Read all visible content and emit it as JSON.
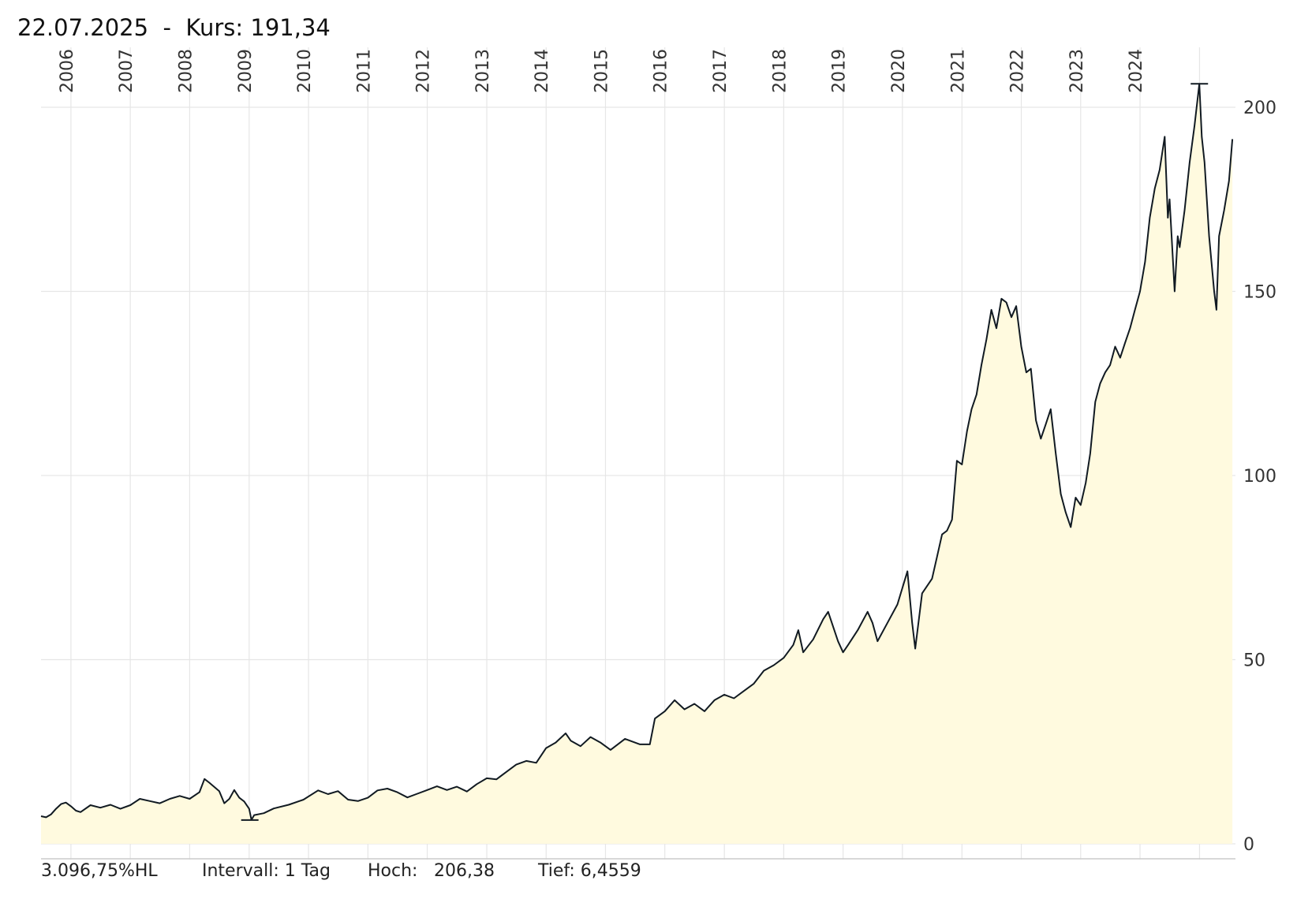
{
  "header": {
    "date": "22.07.2025",
    "separator": "-",
    "kurs_label": "Kurs:",
    "kurs_value": "191,34"
  },
  "footer": {
    "performance": "3.096,75%HL",
    "interval": "Intervall: 1 Tag",
    "high_label": "Hoch:",
    "high_value": "206,38",
    "low": "Tief: 6,4559"
  },
  "colors": {
    "line": "#111a22",
    "area": "#fffadf",
    "grid": "#e6e6e6",
    "axis": "#cccccc"
  },
  "chart_data": {
    "type": "area",
    "x_axis": "date (year)",
    "x_ticks": [
      "2006",
      "2007",
      "2008",
      "2009",
      "2010",
      "2011",
      "2012",
      "2013",
      "2014",
      "2015",
      "2016",
      "2017",
      "2018",
      "2019",
      "2020",
      "2021",
      "2022",
      "2023",
      "2024"
    ],
    "y_ticks": [
      "0",
      "50",
      "100",
      "150",
      "200"
    ],
    "ylim": [
      0,
      200
    ],
    "grid": true,
    "high_marker": {
      "date": "2024-12-31",
      "value": 206.38
    },
    "low_marker": {
      "date": "2009-01-05",
      "value": 6.4559
    },
    "series": [
      {
        "points": [
          [
            "2005-07-01",
            7.5
          ],
          [
            "2005-08-01",
            7.2
          ],
          [
            "2005-09-01",
            8.0
          ],
          [
            "2005-10-01",
            9.5
          ],
          [
            "2005-11-01",
            10.8
          ],
          [
            "2005-12-01",
            11.2
          ],
          [
            "2006-01-01",
            10.2
          ],
          [
            "2006-02-01",
            9.0
          ],
          [
            "2006-03-01",
            8.6
          ],
          [
            "2006-05-01",
            10.5
          ],
          [
            "2006-07-01",
            9.8
          ],
          [
            "2006-09-01",
            10.6
          ],
          [
            "2006-11-01",
            9.5
          ],
          [
            "2007-01-01",
            10.5
          ],
          [
            "2007-03-01",
            12.2
          ],
          [
            "2007-05-01",
            11.6
          ],
          [
            "2007-07-01",
            11.0
          ],
          [
            "2007-09-01",
            12.2
          ],
          [
            "2007-11-01",
            13.0
          ],
          [
            "2008-01-01",
            12.2
          ],
          [
            "2008-03-01",
            14.0
          ],
          [
            "2008-04-01",
            17.6
          ],
          [
            "2008-05-01",
            16.6
          ],
          [
            "2008-07-01",
            14.3
          ],
          [
            "2008-08-01",
            11.0
          ],
          [
            "2008-09-01",
            12.2
          ],
          [
            "2008-10-01",
            14.6
          ],
          [
            "2008-11-01",
            12.5
          ],
          [
            "2008-12-01",
            11.5
          ],
          [
            "2009-01-01",
            9.5
          ],
          [
            "2009-01-15",
            6.5
          ],
          [
            "2009-02-01",
            7.8
          ],
          [
            "2009-04-01",
            8.3
          ],
          [
            "2009-06-01",
            9.6
          ],
          [
            "2009-09-01",
            10.6
          ],
          [
            "2009-12-01",
            12.0
          ],
          [
            "2010-03-01",
            14.5
          ],
          [
            "2010-05-01",
            13.5
          ],
          [
            "2010-07-01",
            14.3
          ],
          [
            "2010-09-01",
            12.0
          ],
          [
            "2010-11-01",
            11.6
          ],
          [
            "2011-01-01",
            12.5
          ],
          [
            "2011-03-01",
            14.5
          ],
          [
            "2011-05-01",
            15.0
          ],
          [
            "2011-07-01",
            14.0
          ],
          [
            "2011-09-01",
            12.6
          ],
          [
            "2011-11-01",
            13.6
          ],
          [
            "2012-01-01",
            14.6
          ],
          [
            "2012-03-01",
            15.6
          ],
          [
            "2012-05-01",
            14.6
          ],
          [
            "2012-07-01",
            15.5
          ],
          [
            "2012-09-01",
            14.2
          ],
          [
            "2012-11-01",
            16.2
          ],
          [
            "2013-01-01",
            17.8
          ],
          [
            "2013-03-01",
            17.5
          ],
          [
            "2013-05-01",
            19.5
          ],
          [
            "2013-07-01",
            21.5
          ],
          [
            "2013-09-01",
            22.5
          ],
          [
            "2013-11-01",
            22.0
          ],
          [
            "2014-01-01",
            26.0
          ],
          [
            "2014-03-01",
            27.5
          ],
          [
            "2014-05-01",
            30.0
          ],
          [
            "2014-06-01",
            28.0
          ],
          [
            "2014-08-01",
            26.5
          ],
          [
            "2014-10-01",
            29.0
          ],
          [
            "2014-12-01",
            27.5
          ],
          [
            "2015-02-01",
            25.5
          ],
          [
            "2015-05-01",
            28.5
          ],
          [
            "2015-08-01",
            27.0
          ],
          [
            "2015-10-01",
            27.0
          ],
          [
            "2015-11-01",
            34.0
          ],
          [
            "2016-01-01",
            36.0
          ],
          [
            "2016-03-01",
            39.0
          ],
          [
            "2016-05-01",
            36.5
          ],
          [
            "2016-07-01",
            38.0
          ],
          [
            "2016-09-01",
            36.0
          ],
          [
            "2016-11-01",
            39.0
          ],
          [
            "2017-01-01",
            40.5
          ],
          [
            "2017-03-01",
            39.5
          ],
          [
            "2017-05-01",
            41.5
          ],
          [
            "2017-07-01",
            43.5
          ],
          [
            "2017-09-01",
            47.0
          ],
          [
            "2017-11-01",
            48.5
          ],
          [
            "2018-01-01",
            50.5
          ],
          [
            "2018-03-01",
            54.0
          ],
          [
            "2018-04-01",
            58.0
          ],
          [
            "2018-05-01",
            52.0
          ],
          [
            "2018-07-01",
            55.5
          ],
          [
            "2018-09-01",
            61.0
          ],
          [
            "2018-10-01",
            63.0
          ],
          [
            "2018-12-01",
            55.0
          ],
          [
            "2019-01-01",
            52.0
          ],
          [
            "2019-02-01",
            54.0
          ],
          [
            "2019-04-01",
            58.0
          ],
          [
            "2019-06-01",
            63.0
          ],
          [
            "2019-07-01",
            60.0
          ],
          [
            "2019-08-01",
            55.0
          ],
          [
            "2019-10-01",
            60.0
          ],
          [
            "2019-12-01",
            65.0
          ],
          [
            "2020-02-01",
            74.0
          ],
          [
            "2020-03-01",
            60.0
          ],
          [
            "2020-03-20",
            53.0
          ],
          [
            "2020-05-01",
            68.0
          ],
          [
            "2020-07-01",
            72.0
          ],
          [
            "2020-08-01",
            78.0
          ],
          [
            "2020-09-01",
            84.0
          ],
          [
            "2020-10-01",
            85.0
          ],
          [
            "2020-11-01",
            88.0
          ],
          [
            "2020-12-01",
            104.0
          ],
          [
            "2021-01-01",
            103.0
          ],
          [
            "2021-02-01",
            112.0
          ],
          [
            "2021-03-01",
            118.0
          ],
          [
            "2021-04-01",
            122.0
          ],
          [
            "2021-05-01",
            130.0
          ],
          [
            "2021-06-01",
            137.0
          ],
          [
            "2021-07-01",
            145.0
          ],
          [
            "2021-08-01",
            140.0
          ],
          [
            "2021-09-01",
            148.0
          ],
          [
            "2021-10-01",
            147.0
          ],
          [
            "2021-11-01",
            143.0
          ],
          [
            "2021-12-01",
            146.0
          ],
          [
            "2022-01-01",
            135.0
          ],
          [
            "2022-02-01",
            128.0
          ],
          [
            "2022-03-01",
            129.0
          ],
          [
            "2022-04-01",
            115.0
          ],
          [
            "2022-05-01",
            110.0
          ],
          [
            "2022-06-01",
            114.0
          ],
          [
            "2022-07-01",
            118.0
          ],
          [
            "2022-08-01",
            106.0
          ],
          [
            "2022-09-01",
            95.0
          ],
          [
            "2022-10-01",
            90.0
          ],
          [
            "2022-11-01",
            86.0
          ],
          [
            "2022-12-01",
            94.0
          ],
          [
            "2023-01-01",
            92.0
          ],
          [
            "2023-02-01",
            98.0
          ],
          [
            "2023-03-01",
            106.0
          ],
          [
            "2023-04-01",
            120.0
          ],
          [
            "2023-05-01",
            125.0
          ],
          [
            "2023-06-01",
            128.0
          ],
          [
            "2023-07-01",
            130.0
          ],
          [
            "2023-08-01",
            135.0
          ],
          [
            "2023-09-01",
            132.0
          ],
          [
            "2023-10-01",
            136.0
          ],
          [
            "2023-11-01",
            140.0
          ],
          [
            "2023-12-01",
            145.0
          ],
          [
            "2024-01-01",
            150.0
          ],
          [
            "2024-02-01",
            158.0
          ],
          [
            "2024-03-01",
            170.0
          ],
          [
            "2024-04-01",
            178.0
          ],
          [
            "2024-05-01",
            183.0
          ],
          [
            "2024-06-01",
            192.0
          ],
          [
            "2024-06-20",
            170.0
          ],
          [
            "2024-07-01",
            175.0
          ],
          [
            "2024-08-01",
            150.0
          ],
          [
            "2024-08-20",
            165.0
          ],
          [
            "2024-09-01",
            162.0
          ],
          [
            "2024-10-01",
            172.0
          ],
          [
            "2024-11-01",
            185.0
          ],
          [
            "2024-12-01",
            195.0
          ],
          [
            "2024-12-31",
            206.38
          ],
          [
            "2025-01-15",
            192.0
          ],
          [
            "2025-02-01",
            185.0
          ],
          [
            "2025-03-01",
            165.0
          ],
          [
            "2025-04-01",
            150.0
          ],
          [
            "2025-04-15",
            145.0
          ],
          [
            "2025-05-01",
            165.0
          ],
          [
            "2025-06-01",
            172.0
          ],
          [
            "2025-07-01",
            180.0
          ],
          [
            "2025-07-22",
            191.34
          ]
        ]
      }
    ]
  }
}
